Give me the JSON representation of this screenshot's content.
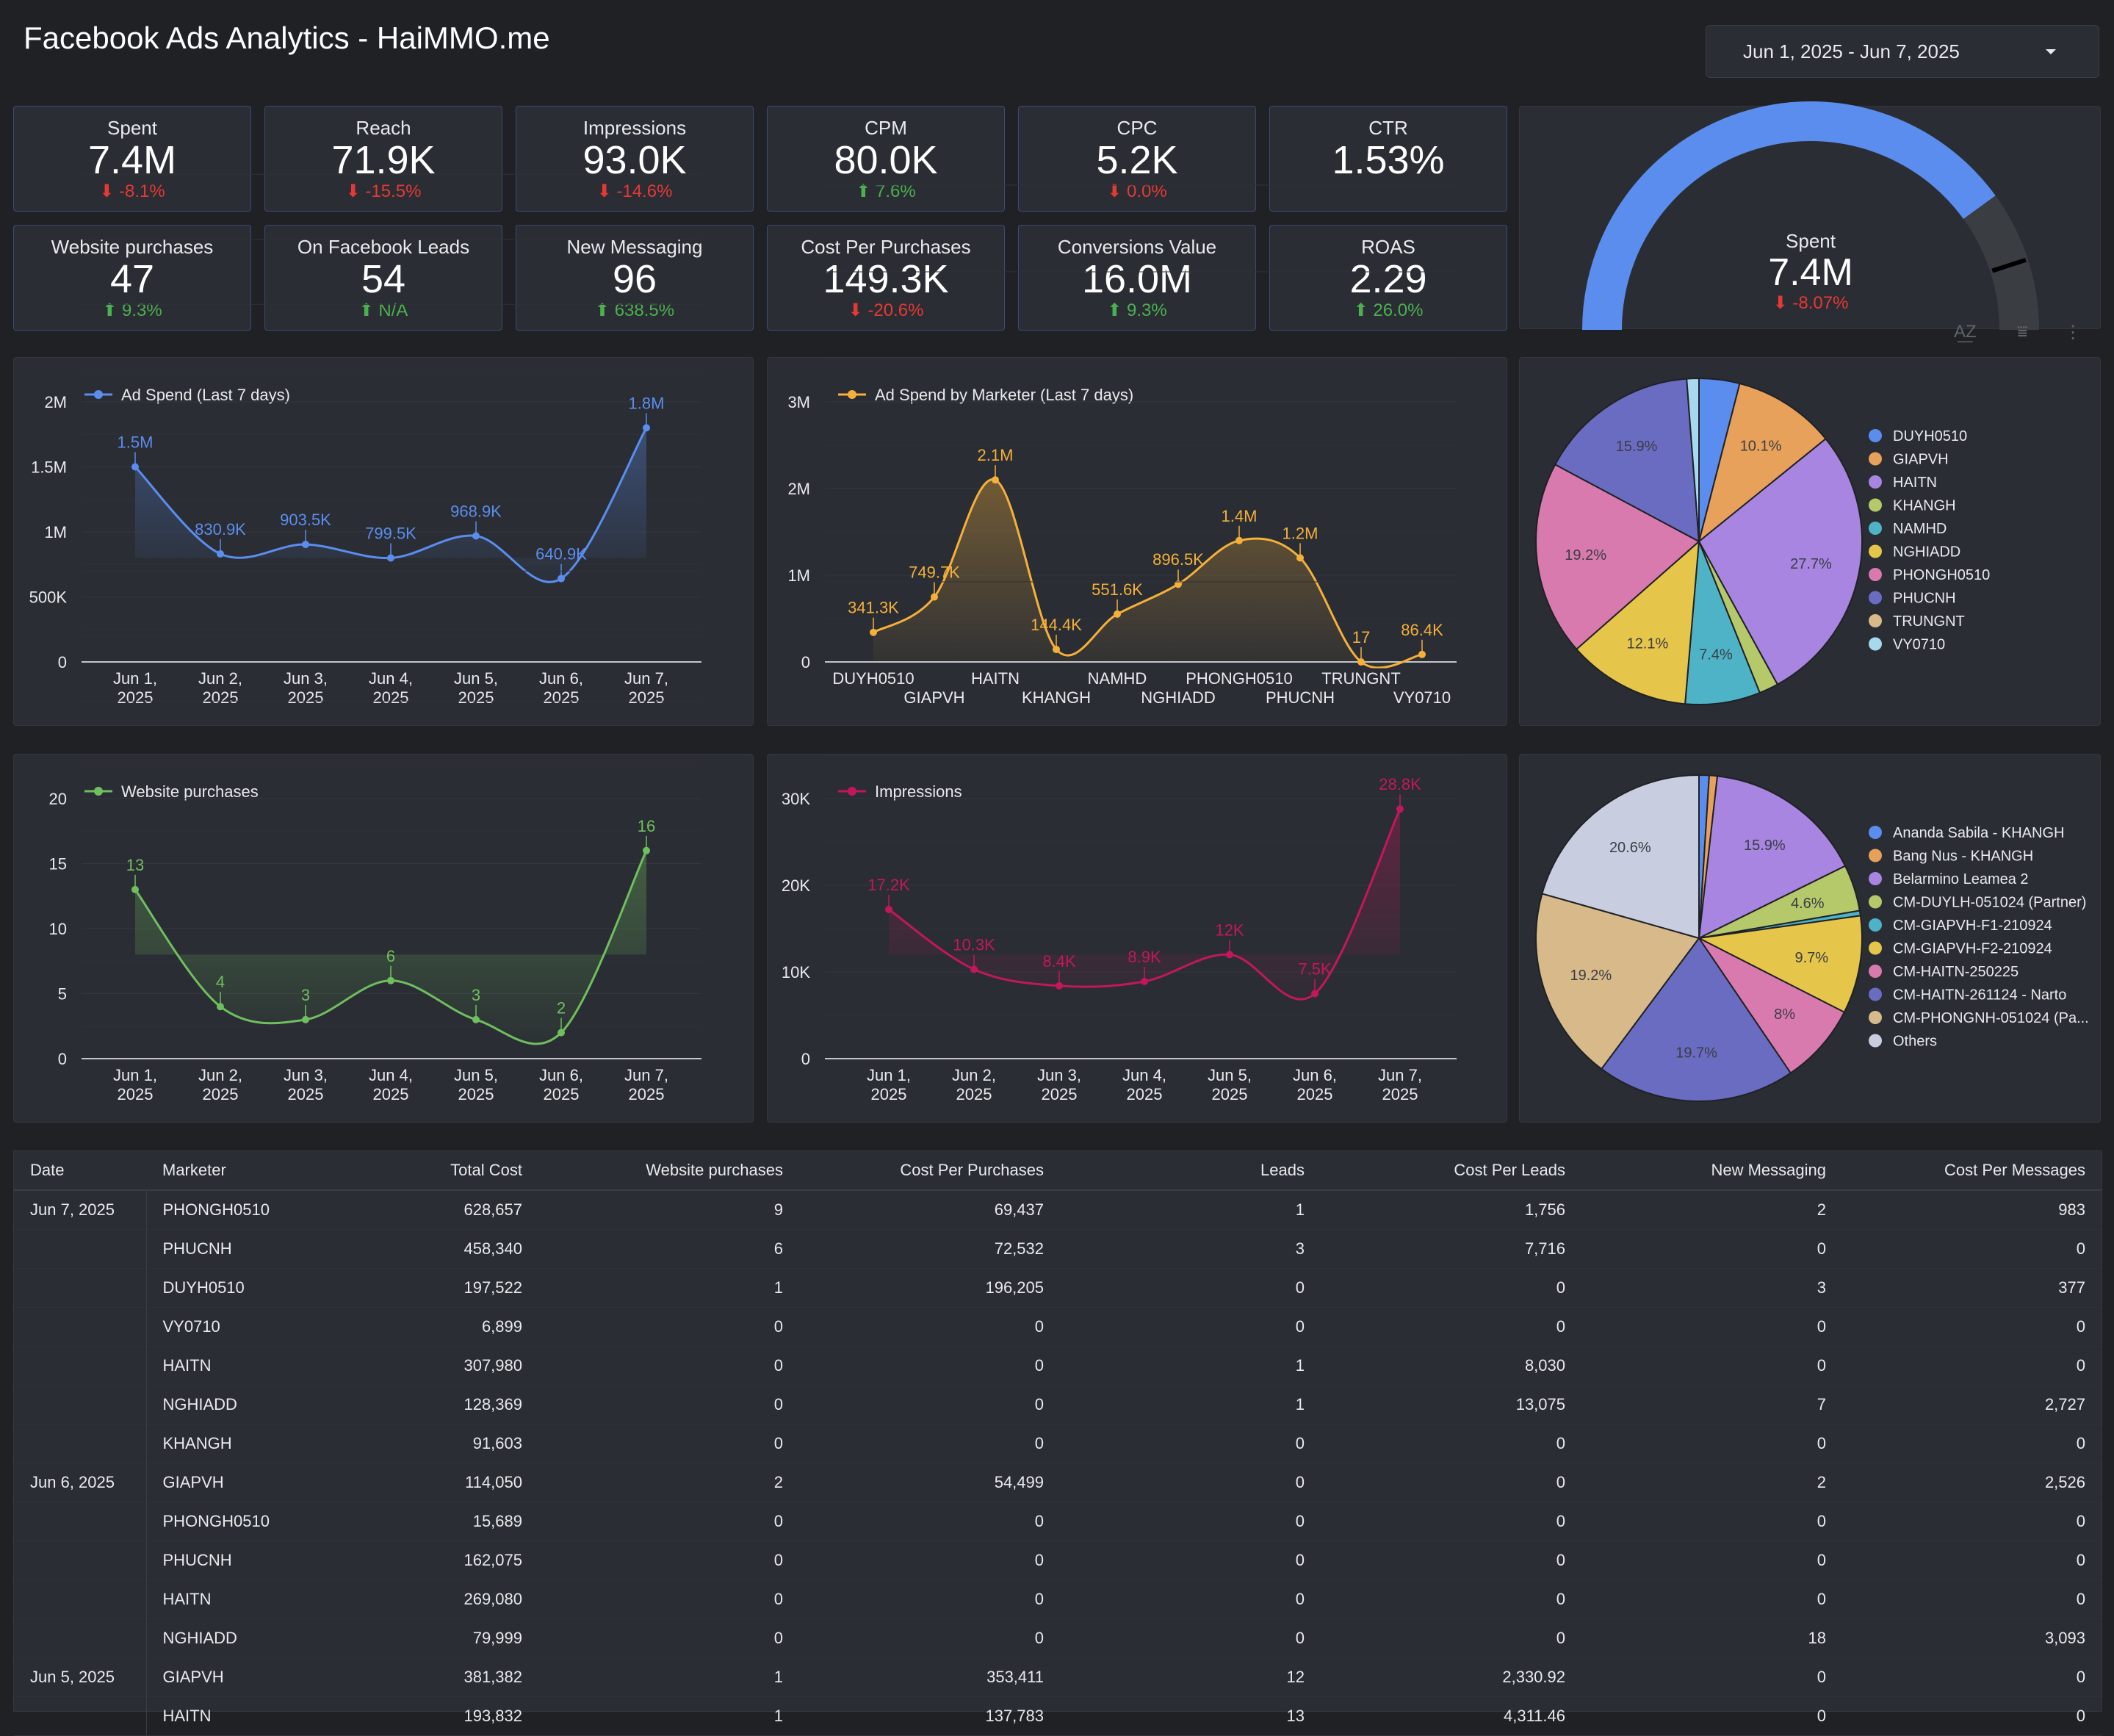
{
  "header": {
    "title": "Facebook Ads Analytics - HaiMMO.me",
    "date_range": "Jun 1, 2025 - Jun 7, 2025"
  },
  "kpis": [
    {
      "title": "Spent",
      "value": "7.4M",
      "delta": "-8.1%",
      "trend": "down"
    },
    {
      "title": "Reach",
      "value": "71.9K",
      "delta": "-15.5%",
      "trend": "down"
    },
    {
      "title": "Impressions",
      "value": "93.0K",
      "delta": "-14.6%",
      "trend": "down"
    },
    {
      "title": "CPM",
      "value": "80.0K",
      "delta": "7.6%",
      "trend": "up"
    },
    {
      "title": "CPC",
      "value": "5.2K",
      "delta": "0.0%",
      "trend": "down"
    },
    {
      "title": "CTR",
      "value": "1.53%",
      "delta": "",
      "trend": ""
    },
    {
      "title": "Website purchases",
      "value": "47",
      "delta": "9.3%",
      "trend": "up"
    },
    {
      "title": "On Facebook Leads",
      "value": "54",
      "delta": "N/A",
      "trend": "up"
    },
    {
      "title": "New Messaging",
      "value": "96",
      "delta": "638.5%",
      "trend": "up"
    },
    {
      "title": "Cost Per Purchases",
      "value": "149.3K",
      "delta": "-20.6%",
      "trend": "down"
    },
    {
      "title": "Conversions Value",
      "value": "16.0M",
      "delta": "9.3%",
      "trend": "up"
    },
    {
      "title": "ROAS",
      "value": "2.29",
      "delta": "26.0%",
      "trend": "up"
    }
  ],
  "gauge": {
    "title": "Spent",
    "value": "7.4M",
    "delta": "-8.07%",
    "fill_fraction": 0.8,
    "target_fraction": 0.9,
    "color": "#5b8def"
  },
  "colors": {
    "blue": "#5b8def",
    "orange": "#f5b03a",
    "green": "#6fbf5f",
    "red": "#c2185b",
    "up": "#4caf50",
    "down": "#e53935"
  },
  "chart_data": [
    {
      "type": "line",
      "series": [
        {
          "name": "Ad Spend (Last 7 days)",
          "values": [
            1500000,
            830900,
            903500,
            799500,
            968900,
            640900,
            1800000
          ]
        }
      ],
      "x": [
        "Jun 1, 2025",
        "Jun 2, 2025",
        "Jun 3, 2025",
        "Jun 4, 2025",
        "Jun 5, 2025",
        "Jun 6, 2025",
        "Jun 7, 2025"
      ],
      "labels": [
        "1.5M",
        "830.9K",
        "903.5K",
        "799.5K",
        "968.9K",
        "640.9K",
        "1.8M"
      ],
      "yticks": [
        "0",
        "500K",
        "1M",
        "1.5M",
        "2M"
      ],
      "ylim": [
        0,
        2000000
      ],
      "color": "#5b8def"
    },
    {
      "type": "area",
      "series": [
        {
          "name": "Ad Spend by Marketer (Last 7 days)",
          "values": [
            341300,
            749700,
            2100000,
            144400,
            551600,
            896500,
            1400000,
            1200000,
            17,
            86400
          ]
        }
      ],
      "x": [
        "DUYH0510",
        "GIAPVH",
        "HAITN",
        "KHANGH",
        "NAMHD",
        "NGHIADD",
        "PHONGH0510",
        "PHUCNH",
        "TRUNGNT",
        "VY0710"
      ],
      "labels": [
        "341.3K",
        "749.7K",
        "2.1M",
        "144.4K",
        "551.6K",
        "896.5K",
        "1.4M",
        "1.2M",
        "17",
        "86.4K"
      ],
      "yticks": [
        "0",
        "1M",
        "2M",
        "3M"
      ],
      "ylim": [
        0,
        3000000
      ],
      "color": "#f5b03a"
    },
    {
      "type": "pie",
      "slices": [
        {
          "name": "DUYH0510",
          "value": 4.0,
          "label": "",
          "color": "#5b8def"
        },
        {
          "name": "GIAPVH",
          "value": 10.1,
          "label": "10.1%",
          "color": "#e8a15a"
        },
        {
          "name": "HAITN",
          "value": 27.7,
          "label": "27.7%",
          "color": "#a785e0"
        },
        {
          "name": "KHANGH",
          "value": 1.9,
          "label": "",
          "color": "#b5c96a"
        },
        {
          "name": "NAMHD",
          "value": 7.4,
          "label": "7.4%",
          "color": "#4fb3c8"
        },
        {
          "name": "NGHIADD",
          "value": 12.1,
          "label": "12.1%",
          "color": "#e6c54b"
        },
        {
          "name": "PHONGH0510",
          "value": 19.2,
          "label": "19.2%",
          "color": "#d97aaf"
        },
        {
          "name": "PHUCNH",
          "value": 15.9,
          "label": "15.9%",
          "color": "#6a6cc2"
        },
        {
          "name": "TRUNGNT",
          "value": 0.0,
          "label": "",
          "color": "#d8b98a"
        },
        {
          "name": "VY0710",
          "value": 1.2,
          "label": "",
          "color": "#a8d8ee"
        }
      ]
    },
    {
      "type": "line",
      "series": [
        {
          "name": "Website purchases",
          "values": [
            13,
            4,
            3,
            6,
            3,
            2,
            16
          ]
        }
      ],
      "x": [
        "Jun 1, 2025",
        "Jun 2, 2025",
        "Jun 3, 2025",
        "Jun 4, 2025",
        "Jun 5, 2025",
        "Jun 6, 2025",
        "Jun 7, 2025"
      ],
      "labels": [
        "13",
        "4",
        "3",
        "6",
        "3",
        "2",
        "16"
      ],
      "yticks": [
        "0",
        "5",
        "10",
        "15",
        "20"
      ],
      "ylim": [
        0,
        20
      ],
      "color": "#6fbf5f"
    },
    {
      "type": "line",
      "series": [
        {
          "name": "Impressions",
          "values": [
            17200,
            10300,
            8400,
            8900,
            12000,
            7500,
            28800
          ]
        }
      ],
      "x": [
        "Jun 1, 2025",
        "Jun 2, 2025",
        "Jun 3, 2025",
        "Jun 4, 2025",
        "Jun 5, 2025",
        "Jun 6, 2025",
        "Jun 7, 2025"
      ],
      "labels": [
        "17.2K",
        "10.3K",
        "8.4K",
        "8.9K",
        "12K",
        "7.5K",
        "28.8K"
      ],
      "yticks": [
        "0",
        "10K",
        "20K",
        "30K"
      ],
      "ylim": [
        0,
        30000
      ],
      "color": "#c2185b"
    },
    {
      "type": "pie",
      "slices": [
        {
          "name": "Ananda Sabila - KHANGH",
          "value": 1.0,
          "label": "",
          "color": "#5b8def"
        },
        {
          "name": "Bang Nus - KHANGH",
          "value": 0.8,
          "label": "",
          "color": "#e8a15a"
        },
        {
          "name": "Belarmino Leamea 2",
          "value": 15.9,
          "label": "15.9%",
          "color": "#a785e0"
        },
        {
          "name": "CM-DUYLH-051024 (Partner)",
          "value": 4.6,
          "label": "4.6%",
          "color": "#b5c96a"
        },
        {
          "name": "CM-GIAPVH-F1-210924",
          "value": 0.5,
          "label": "",
          "color": "#4fb3c8"
        },
        {
          "name": "CM-GIAPVH-F2-210924",
          "value": 9.7,
          "label": "9.7%",
          "color": "#e6c54b"
        },
        {
          "name": "CM-HAITN-250225",
          "value": 8.0,
          "label": "8%",
          "color": "#d97aaf"
        },
        {
          "name": "CM-HAITN-261124 - Narto",
          "value": 19.7,
          "label": "19.7%",
          "color": "#6a6cc2"
        },
        {
          "name": "CM-PHONGNH-051024 (Pa...",
          "value": 19.2,
          "label": "19.2%",
          "color": "#d8b98a"
        },
        {
          "name": "Others",
          "value": 20.6,
          "label": "20.6%",
          "color": "#c9cde0"
        }
      ]
    }
  ],
  "table": {
    "headers": [
      "Date",
      "Marketer",
      "Total Cost",
      "Website purchases",
      "Cost Per Purchases",
      "Leads",
      "Cost Per Leads",
      "New Messaging",
      "Cost Per Messages"
    ],
    "rows": [
      [
        "Jun 7, 2025",
        "PHONGH0510",
        "628,657",
        "9",
        "69,437",
        "1",
        "1,756",
        "2",
        "983"
      ],
      [
        "",
        "PHUCNH",
        "458,340",
        "6",
        "72,532",
        "3",
        "7,716",
        "0",
        "0"
      ],
      [
        "",
        "DUYH0510",
        "197,522",
        "1",
        "196,205",
        "0",
        "0",
        "3",
        "377"
      ],
      [
        "",
        "VY0710",
        "6,899",
        "0",
        "0",
        "0",
        "0",
        "0",
        "0"
      ],
      [
        "",
        "HAITN",
        "307,980",
        "0",
        "0",
        "1",
        "8,030",
        "0",
        "0"
      ],
      [
        "",
        "NGHIADD",
        "128,369",
        "0",
        "0",
        "1",
        "13,075",
        "7",
        "2,727"
      ],
      [
        "",
        "KHANGH",
        "91,603",
        "0",
        "0",
        "0",
        "0",
        "0",
        "0"
      ],
      [
        "Jun 6, 2025",
        "GIAPVH",
        "114,050",
        "2",
        "54,499",
        "0",
        "0",
        "2",
        "2,526"
      ],
      [
        "",
        "PHONGH0510",
        "15,689",
        "0",
        "0",
        "0",
        "0",
        "0",
        "0"
      ],
      [
        "",
        "PHUCNH",
        "162,075",
        "0",
        "0",
        "0",
        "0",
        "0",
        "0"
      ],
      [
        "",
        "HAITN",
        "269,080",
        "0",
        "0",
        "0",
        "0",
        "0",
        "0"
      ],
      [
        "",
        "NGHIADD",
        "79,999",
        "0",
        "0",
        "0",
        "0",
        "18",
        "3,093"
      ],
      [
        "Jun 5, 2025",
        "GIAPVH",
        "381,382",
        "1",
        "353,411",
        "12",
        "2,330.92",
        "0",
        "0"
      ],
      [
        "",
        "HAITN",
        "193,832",
        "1",
        "137,783",
        "13",
        "4,311.46",
        "0",
        "0"
      ]
    ]
  }
}
